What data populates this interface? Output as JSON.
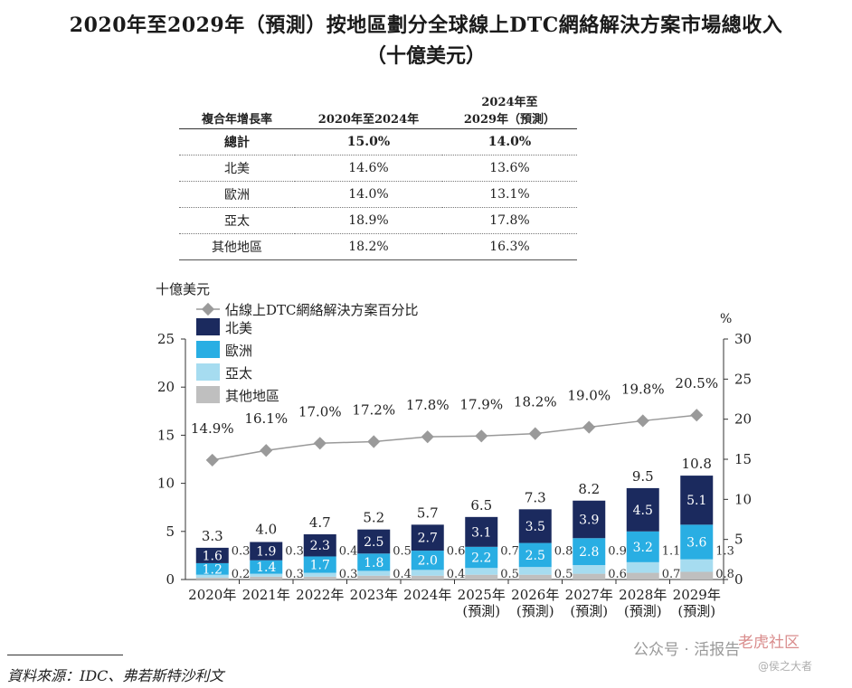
{
  "title": {
    "line1": "2020年至2029年（預測）按地區劃分全球線上DTC網絡解決方案市場總收入",
    "line2": "（十億美元）"
  },
  "cagr_table": {
    "header": [
      "複合年增長率",
      "2020年至2024年",
      "2024年至",
      "2029年（預測）"
    ],
    "rows": [
      {
        "region": "總計",
        "a": "15.0%",
        "b": "14.0%"
      },
      {
        "region": "北美",
        "a": "14.6%",
        "b": "13.6%"
      },
      {
        "region": "歐洲",
        "a": "14.0%",
        "b": "13.1%"
      },
      {
        "region": "亞太",
        "a": "18.9%",
        "b": "17.8%"
      },
      {
        "region": "其他地區",
        "a": "18.2%",
        "b": "16.3%"
      }
    ]
  },
  "chart_data": {
    "type": "bar",
    "stacked": true,
    "ylabel": "十億美元",
    "y2label": "%",
    "ylim": [
      0,
      25
    ],
    "y2lim": [
      0,
      30
    ],
    "yticks": [
      "0",
      "5",
      "10",
      "15",
      "20",
      "25"
    ],
    "y2ticks": [
      "0",
      "5",
      "10",
      "15",
      "20",
      "25",
      "30"
    ],
    "categories": [
      [
        "2020年"
      ],
      [
        "2021年"
      ],
      [
        "2022年"
      ],
      [
        "2023年"
      ],
      [
        "2024年"
      ],
      [
        "2025年",
        "(預測)"
      ],
      [
        "2026年",
        "(預測)"
      ],
      [
        "2027年",
        "(預測)"
      ],
      [
        "2028年",
        "(預測)"
      ],
      [
        "2029年",
        "(預測)"
      ]
    ],
    "series": [
      {
        "name": "其他地區",
        "color": "#bfbfbf",
        "labels": [
          "0.2",
          "0.3",
          "0.3",
          "0.4",
          "0.4",
          "0.5",
          "0.5",
          "0.6",
          "0.7",
          "0.8"
        ],
        "values": [
          0.2,
          0.3,
          0.3,
          0.4,
          0.4,
          0.5,
          0.5,
          0.6,
          0.7,
          0.8
        ]
      },
      {
        "name": "亞太",
        "color": "#a6dcf0",
        "labels": [
          "0.3",
          "0.3",
          "0.4",
          "0.5",
          "0.6",
          "0.7",
          "0.8",
          "0.9",
          "1.1",
          "1.3"
        ],
        "values": [
          0.3,
          0.3,
          0.4,
          0.5,
          0.6,
          0.7,
          0.8,
          0.9,
          1.1,
          1.3
        ]
      },
      {
        "name": "歐洲",
        "color": "#29aee3",
        "labels": [
          "1.2",
          "1.4",
          "1.7",
          "1.8",
          "2.0",
          "2.2",
          "2.5",
          "2.8",
          "3.2",
          "3.6"
        ],
        "values": [
          1.2,
          1.4,
          1.7,
          1.8,
          2.0,
          2.2,
          2.5,
          2.8,
          3.2,
          3.6
        ]
      },
      {
        "name": "北美",
        "color": "#1b2a5e",
        "labels": [
          "1.6",
          "1.9",
          "2.3",
          "2.5",
          "2.7",
          "3.1",
          "3.5",
          "3.9",
          "4.5",
          "5.1"
        ],
        "values": [
          1.6,
          1.9,
          2.3,
          2.5,
          2.7,
          3.1,
          3.5,
          3.9,
          4.5,
          5.1
        ]
      }
    ],
    "totals": [
      "3.3",
      "4.0",
      "4.7",
      "5.2",
      "5.7",
      "6.5",
      "7.3",
      "8.2",
      "9.5",
      "10.8"
    ],
    "total_values": [
      3.3,
      4.0,
      4.7,
      5.2,
      5.7,
      6.5,
      7.3,
      8.2,
      9.5,
      10.8
    ],
    "line": {
      "name": "佔線上DTC網絡解決方案百分比",
      "color": "#999999",
      "values": [
        14.9,
        16.1,
        17.0,
        17.2,
        17.8,
        17.9,
        18.2,
        19.0,
        19.8,
        20.5
      ],
      "labels": [
        "14.9%",
        "16.1%",
        "17.0%",
        "17.2%",
        "17.8%",
        "17.9%",
        "18.2%",
        "19.0%",
        "19.8%",
        "20.5%"
      ]
    },
    "legend": {
      "position": "top-left",
      "items": [
        {
          "label": "佔線上DTC網絡解決方案百分比",
          "kind": "line",
          "color": "#999999"
        },
        {
          "label": "北美",
          "kind": "box",
          "color": "#1b2a5e"
        },
        {
          "label": "歐洲",
          "kind": "box",
          "color": "#29aee3"
        },
        {
          "label": "亞太",
          "kind": "box",
          "color": "#a6dcf0"
        },
        {
          "label": "其他地區",
          "kind": "box",
          "color": "#bfbfbf"
        }
      ]
    }
  },
  "source": "資料來源：IDC、弗若斯特沙利文",
  "watermark": {
    "text": "公众号 · 活报告",
    "brand": "老虎社区",
    "handle": "@侯之大者"
  }
}
